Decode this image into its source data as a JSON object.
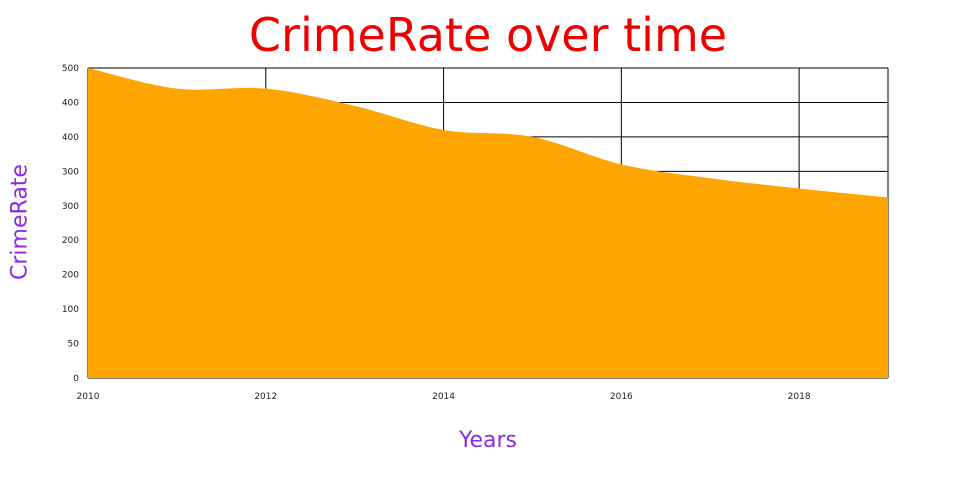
{
  "chart_data": {
    "type": "area",
    "title": "CrimeRate over time",
    "xlabel": "Years",
    "ylabel": "CrimeRate",
    "x": [
      2010,
      2011,
      2012,
      2013,
      2014,
      2015,
      2016,
      2017,
      2018,
      2019
    ],
    "series": [
      {
        "values": [
          450,
          420,
          420,
          395,
          360,
          350,
          310,
          290,
          275,
          262
        ]
      }
    ],
    "y_tick_labels": [
      "0",
      "50",
      "100",
      "200",
      "200",
      "300",
      "300",
      "400",
      "400",
      "500"
    ],
    "x_tick_labels": [
      "2010",
      "2012",
      "2014",
      "2016",
      "2018"
    ],
    "xlim": [
      2010,
      2019
    ],
    "ylim": [
      0,
      450
    ],
    "grid": true,
    "colors": {
      "area": "#ffa500",
      "title": "#ee0000",
      "axis_label": "#8a2be2",
      "grid": "#000000"
    }
  }
}
